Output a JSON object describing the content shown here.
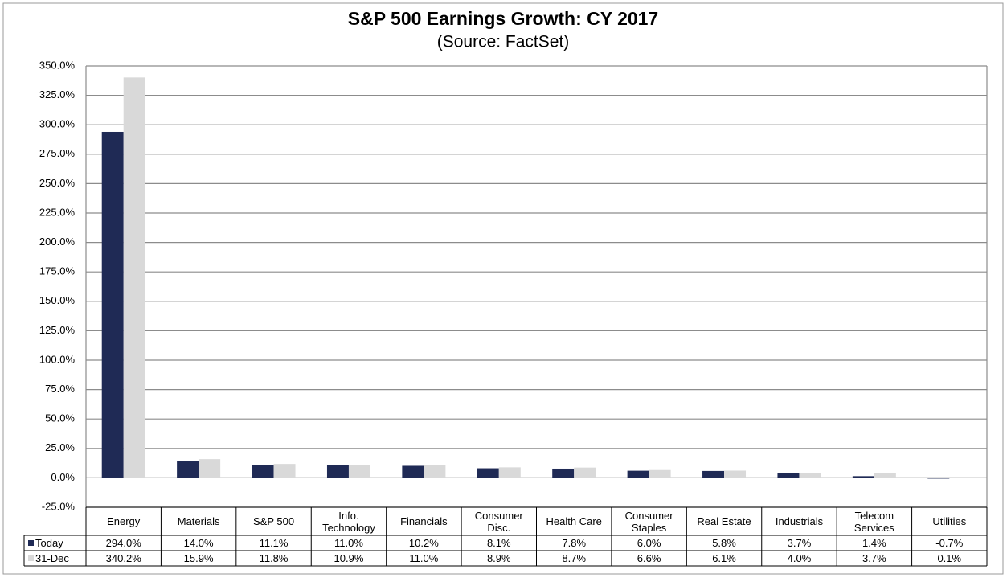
{
  "chart_data": {
    "type": "bar",
    "title": "S&P 500 Earnings Growth: CY 2017",
    "subtitle": "(Source: FactSet)",
    "categories": [
      "Energy",
      "Materials",
      "S&P 500",
      "Info. Technology",
      "Financials",
      "Consumer Disc.",
      "Health Care",
      "Consumer Staples",
      "Real Estate",
      "Industrials",
      "Telecom Services",
      "Utilities"
    ],
    "series": [
      {
        "name": "Today",
        "color": "#1f2a55",
        "values": [
          294.0,
          14.0,
          11.1,
          11.0,
          10.2,
          8.1,
          7.8,
          6.0,
          5.8,
          3.7,
          1.4,
          -0.7
        ],
        "value_labels": [
          "294.0%",
          "14.0%",
          "11.1%",
          "11.0%",
          "10.2%",
          "8.1%",
          "7.8%",
          "6.0%",
          "5.8%",
          "3.7%",
          "1.4%",
          "-0.7%"
        ]
      },
      {
        "name": "31-Dec",
        "color": "#d9d9d9",
        "values": [
          340.2,
          15.9,
          11.8,
          10.9,
          11.0,
          8.9,
          8.7,
          6.6,
          6.1,
          4.0,
          3.7,
          0.1
        ],
        "value_labels": [
          "340.2%",
          "15.9%",
          "11.8%",
          "10.9%",
          "11.0%",
          "8.9%",
          "8.7%",
          "6.6%",
          "6.1%",
          "4.0%",
          "3.7%",
          "0.1%"
        ]
      }
    ],
    "ylim": [
      -25,
      350
    ],
    "yticks": [
      {
        "value": -25,
        "label": "-25.0%"
      },
      {
        "value": 0,
        "label": "0.0%"
      },
      {
        "value": 25,
        "label": "25.0%"
      },
      {
        "value": 50,
        "label": "50.0%"
      },
      {
        "value": 75,
        "label": "75.0%"
      },
      {
        "value": 100,
        "label": "100.0%"
      },
      {
        "value": 125,
        "label": "125.0%"
      },
      {
        "value": 150,
        "label": "150.0%"
      },
      {
        "value": 175,
        "label": "175.0%"
      },
      {
        "value": 200,
        "label": "200.0%"
      },
      {
        "value": 225,
        "label": "225.0%"
      },
      {
        "value": 250,
        "label": "250.0%"
      },
      {
        "value": 275,
        "label": "275.0%"
      },
      {
        "value": 300,
        "label": "300.0%"
      },
      {
        "value": 325,
        "label": "325.0%"
      },
      {
        "value": 350,
        "label": "350.0%"
      }
    ],
    "grid": true,
    "data_table": true
  }
}
